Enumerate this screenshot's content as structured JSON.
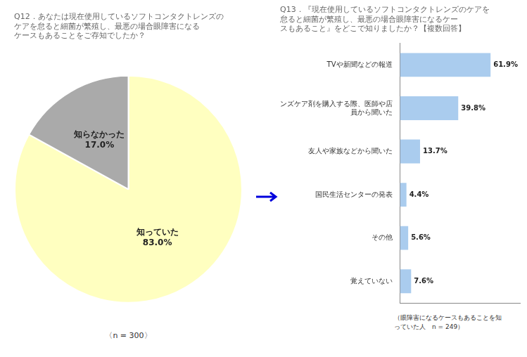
{
  "chart_data": [
    {
      "type": "pie",
      "title": "Q12．あなたは現在使用しているソフトコンタクトレンズの\nケアを怠ると細菌が繁殖し、最悪の場合眼障害になる\nケースもあることをご存知でしたか？",
      "categories": [
        "知っていた",
        "知らなかった"
      ],
      "values": [
        83.0,
        17.0
      ],
      "value_labels": [
        "83.0%",
        "17.0%"
      ],
      "data_labels": true,
      "colors": [
        "#FFFFC0",
        "#AAAAAA"
      ],
      "annotations": [
        "〈n = 300〉"
      ]
    },
    {
      "type": "bar",
      "orientation": "horizontal",
      "title": "Q13．『現在使用しているソフトコンタクトレンズのケアを\n怠ると細菌が繁殖し、最悪の場合眼障害になるケー\nスもあること』をどこで知りましたか？【複数回答】",
      "categories": [
        "TVや新聞などの報道",
        "レンズケア剤を購入する際、医師や店\n員から聞いた",
        "友人や家族などから聞いた",
        "国民生活センターの発表",
        "その他",
        "覚えていない"
      ],
      "values": [
        61.9,
        39.8,
        13.7,
        4.4,
        5.6,
        7.6
      ],
      "value_labels": [
        "61.9%",
        "39.8%",
        "13.7%",
        "4.4%",
        "5.6%",
        "7.6%"
      ],
      "data_labels": true,
      "color": "#AACCEE",
      "xlim": [
        0,
        82
      ],
      "grid": false,
      "tick_labels": "y",
      "annotations": [
        "（眼障害になるケースもあることを知\nっていた人　n = 249）"
      ]
    }
  ]
}
